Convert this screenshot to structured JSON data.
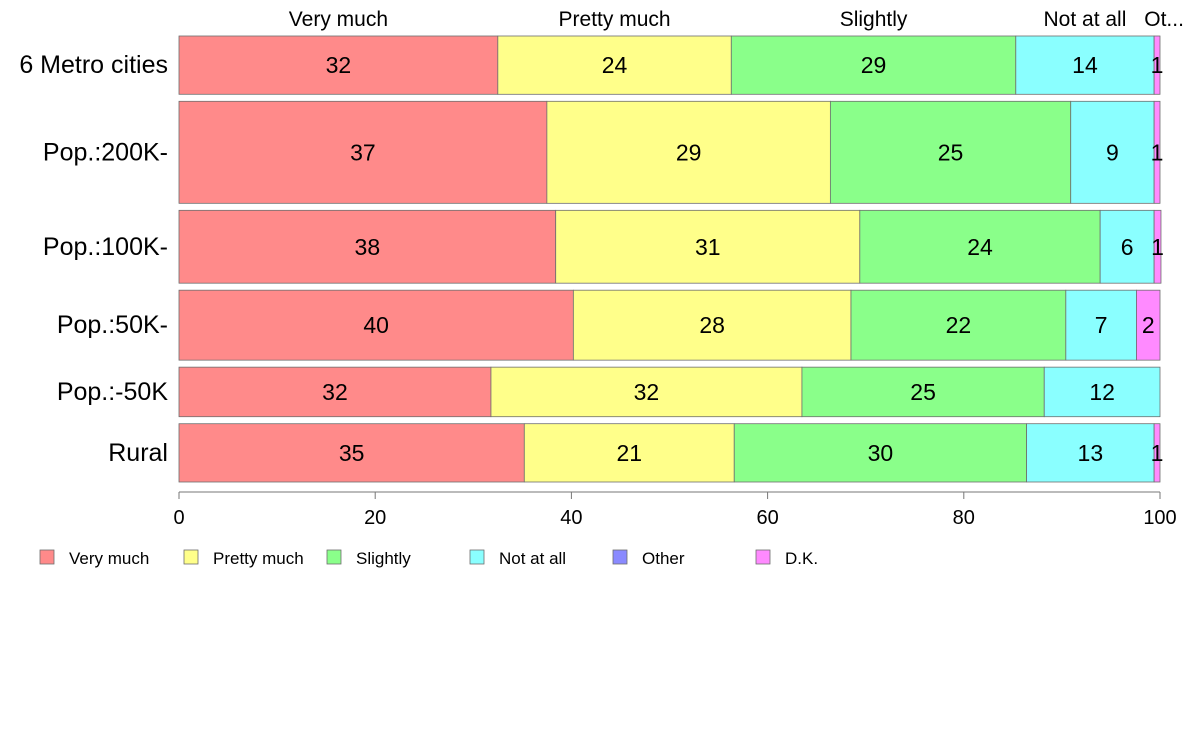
{
  "chart_data": {
    "type": "bar",
    "orientation": "horizontal",
    "stacked": true,
    "categories": [
      "6 Metro cities",
      "Pop.:200K-",
      "Pop.:100K-",
      "Pop.:50K-",
      "Pop.:-50K",
      "Rural"
    ],
    "series": [
      {
        "name": "Very much",
        "color": "#FF8A8A",
        "values": [
          32.5,
          37.5,
          38.4,
          40.2,
          31.8,
          35.2
        ]
      },
      {
        "name": "Pretty much",
        "color": "#FFFF8A",
        "values": [
          23.8,
          28.9,
          31.0,
          28.3,
          31.7,
          21.4
        ]
      },
      {
        "name": "Slightly",
        "color": "#8AFF8A",
        "values": [
          29.0,
          24.5,
          24.5,
          21.9,
          24.7,
          29.8
        ]
      },
      {
        "name": "Not at all",
        "color": "#8AFFFF",
        "values": [
          14.1,
          8.5,
          5.5,
          7.2,
          11.8,
          13.0
        ]
      },
      {
        "name": "Other",
        "color": "#8A8AFF",
        "values": [
          0.0,
          0.0,
          0.0,
          0.0,
          0.0,
          0.0
        ]
      },
      {
        "name": "D.K.",
        "color": "#FF8AFF",
        "values": [
          0.6,
          0.6,
          0.7,
          2.4,
          0.0,
          0.6
        ]
      }
    ],
    "value_labels": [
      [
        "32",
        "24",
        "29",
        "14",
        "",
        "1"
      ],
      [
        "37",
        "29",
        "25",
        "9",
        "",
        "1"
      ],
      [
        "38",
        "31",
        "24",
        "6",
        "",
        "1"
      ],
      [
        "40",
        "28",
        "22",
        "7",
        "",
        "2"
      ],
      [
        "32",
        "32",
        "25",
        "12",
        "",
        ""
      ],
      [
        "35",
        "21",
        "30",
        "13",
        "",
        "1"
      ]
    ],
    "bar_weights": [
      1.0,
      1.75,
      1.25,
      1.2,
      0.85,
      1.0
    ],
    "top_labels": [
      "Very much",
      "Pretty much",
      "Slightly",
      "Not at all",
      "Ot..."
    ],
    "x_ticks": [
      0,
      20,
      40,
      60,
      80,
      100
    ],
    "xlim": [
      0,
      100
    ],
    "title": "",
    "xlabel": "",
    "ylabel": "",
    "grid": false,
    "legend_position": "bottom-left"
  }
}
